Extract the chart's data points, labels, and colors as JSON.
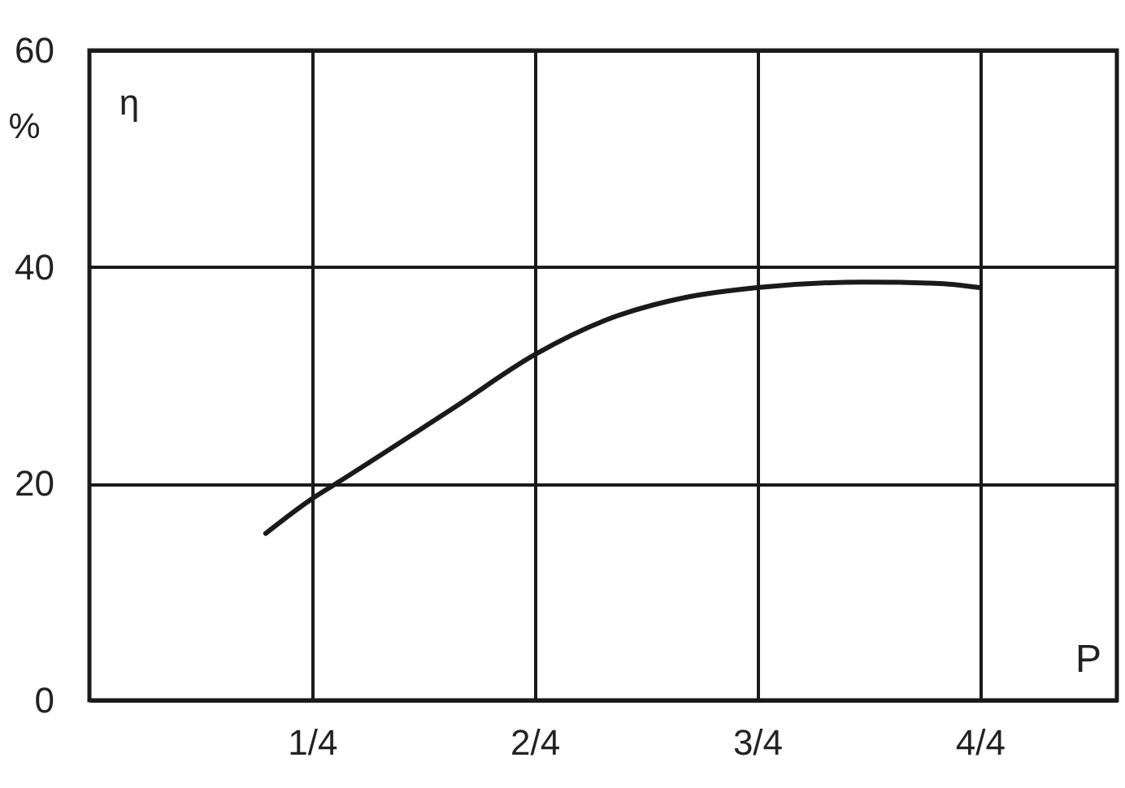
{
  "chart_data": {
    "type": "line",
    "xlabel": "P",
    "ylabel": "η",
    "annotations": [
      "%"
    ],
    "x": [
      0.198,
      0.25,
      0.277,
      0.411,
      0.5,
      0.58,
      0.67,
      0.75,
      0.87,
      0.95,
      1.0
    ],
    "series": [
      {
        "color": "#1a1a1a",
        "values": [
          15.4,
          18.6,
          20,
          27.1,
          31.9,
          35.1,
          37.2,
          38.1,
          38.6,
          38.5,
          38.1
        ]
      }
    ],
    "xlim": [
      0,
      1.154
    ],
    "ylim": [
      0,
      60
    ],
    "xticks": [
      {
        "value": 0.25,
        "label": "1/4"
      },
      {
        "value": 0.5,
        "label": "2/4"
      },
      {
        "value": 0.75,
        "label": "3/4"
      },
      {
        "value": 1,
        "label": "4/4"
      }
    ],
    "yticks": [
      0,
      20,
      40,
      60
    ],
    "grid": true
  }
}
